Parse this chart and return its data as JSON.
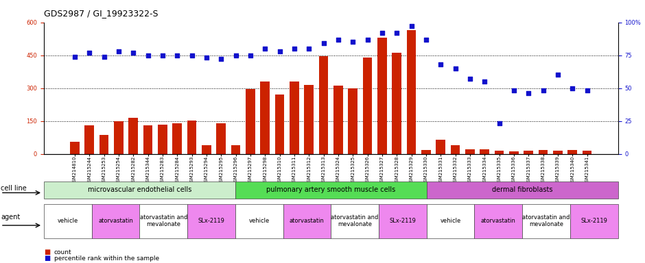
{
  "title": "GDS2987 / GI_19923322-S",
  "samples": [
    "GSM214810",
    "GSM215244",
    "GSM215253",
    "GSM215254",
    "GSM215282",
    "GSM215344",
    "GSM215283",
    "GSM215284",
    "GSM215293",
    "GSM215294",
    "GSM215295",
    "GSM215296",
    "GSM215297",
    "GSM215298",
    "GSM215310",
    "GSM215311",
    "GSM215312",
    "GSM215313",
    "GSM215324",
    "GSM215325",
    "GSM215326",
    "GSM215327",
    "GSM215328",
    "GSM215329",
    "GSM215330",
    "GSM215331",
    "GSM215332",
    "GSM215333",
    "GSM215334",
    "GSM215335",
    "GSM215336",
    "GSM215337",
    "GSM215338",
    "GSM215339",
    "GSM215340",
    "GSM215341"
  ],
  "counts": [
    55,
    130,
    85,
    148,
    165,
    130,
    132,
    140,
    152,
    40,
    140,
    38,
    295,
    330,
    270,
    330,
    315,
    445,
    310,
    300,
    440,
    530,
    460,
    565,
    18,
    65,
    40,
    20,
    20,
    15,
    10,
    15,
    18,
    15,
    18,
    15
  ],
  "percentiles": [
    74,
    77,
    74,
    78,
    77,
    75,
    75,
    75,
    75,
    73,
    72,
    75,
    75,
    80,
    78,
    80,
    80,
    84,
    87,
    85,
    87,
    92,
    92,
    97,
    87,
    68,
    65,
    57,
    55,
    23,
    48,
    46,
    48,
    60,
    50,
    48
  ],
  "bar_color": "#cc2200",
  "dot_color": "#1111cc",
  "ylim_left": [
    0,
    600
  ],
  "ylim_right": [
    0,
    100
  ],
  "yticks_left": [
    0,
    150,
    300,
    450,
    600
  ],
  "yticks_right": [
    0,
    25,
    50,
    75,
    100
  ],
  "cell_line_colors": [
    "#cceecc",
    "#55dd55",
    "#cc66cc"
  ],
  "cell_line_labels": [
    "microvascular endothelial cells",
    "pulmonary artery smooth muscle cells",
    "dermal fibroblasts"
  ],
  "cell_line_ranges": [
    [
      0,
      12
    ],
    [
      12,
      24
    ],
    [
      24,
      36
    ]
  ],
  "agent_colors_pattern": [
    "#ffffff",
    "#ee88ee",
    "#ffffff",
    "#ee88ee"
  ],
  "agent_labels_pattern": [
    "vehicle",
    "atorvastatin",
    "atorvastatin and\nmevalonate",
    "SLx-2119"
  ],
  "background_color": "#ffffff",
  "tick_color_left": "#cc2200",
  "tick_color_right": "#1111cc",
  "title_fontsize": 9,
  "tick_fontsize": 6,
  "sample_fontsize": 5,
  "annotation_fontsize": 7,
  "agent_fontsize": 6
}
